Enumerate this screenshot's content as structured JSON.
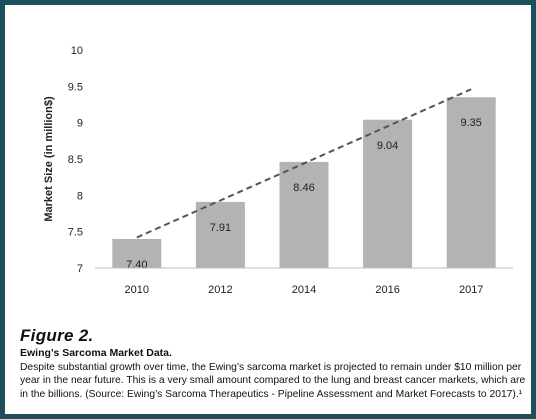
{
  "figure": {
    "title": "Figure 2.",
    "subtitle": "Ewing’s Sarcoma Market Data.",
    "body": "Despite substantial growth over time, the Ewing’s sarcoma market is projected to remain under $10 million per year in the near future. This is a very small amount compared to the lung and breast cancer markets, which are in the billions. (Source: Ewing’s Sarcoma Therapeutics - Pipeline Assessment and Market Forecasts to 2017).¹"
  },
  "colors": {
    "frame": "#1d4f5c",
    "bar": "#b3b3b3",
    "trend": "#555555"
  },
  "chart_data": {
    "type": "bar",
    "categories": [
      "2010",
      "2012",
      "2014",
      "2016",
      "2017"
    ],
    "values": [
      7.4,
      7.91,
      8.46,
      9.04,
      9.35
    ],
    "value_labels": [
      "7.40",
      "7.91",
      "8.46",
      "9.04",
      "9.35"
    ],
    "title": "",
    "xlabel": "",
    "ylabel": "Market Size (in million$)",
    "ylim": [
      7,
      10
    ],
    "yticks": [
      "7",
      "7.5",
      "8",
      "8.5",
      "9",
      "9.5",
      "10"
    ],
    "grid": false,
    "legend": "none",
    "trendline": {
      "style": "dashed",
      "start": 7.42,
      "end": 9.46
    }
  }
}
